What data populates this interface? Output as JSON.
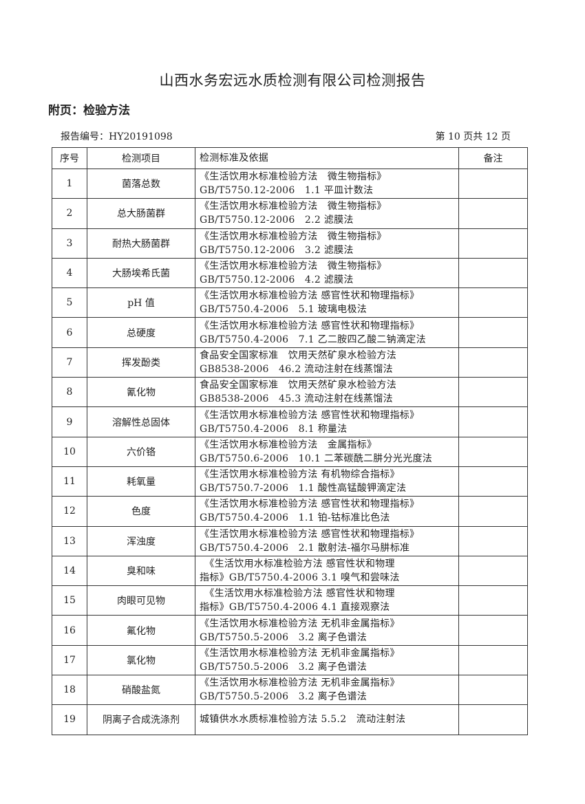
{
  "title": "山西水务宏远水质检测有限公司检测报告",
  "subtitle": "附页：检验方法",
  "report_no_label": "报告编号：HY20191098",
  "page_label": "第 10 页共 12 页",
  "table": {
    "headers": [
      "序号",
      "检测项目",
      "检测标准及依据",
      "备注"
    ],
    "rows": [
      {
        "no": "1",
        "item": "菌落总数",
        "line1": "《生活饮用水标准检验方法　微生物指标》",
        "line2": "GB/T5750.12-2006　1.1 平皿计数法",
        "note": ""
      },
      {
        "no": "2",
        "item": "总大肠菌群",
        "line1": "《生活饮用水标准检验方法　微生物指标》",
        "line2": "GB/T5750.12-2006　2.2 滤膜法",
        "note": ""
      },
      {
        "no": "3",
        "item": "耐热大肠菌群",
        "line1": "《生活饮用水标准检验方法　微生物指标》",
        "line2": "GB/T5750.12-2006　3.2 滤膜法",
        "note": ""
      },
      {
        "no": "4",
        "item": "大肠埃希氏菌",
        "line1": "《生活饮用水标准检验方法　微生物指标》",
        "line2": "GB/T5750.12-2006　4.2 滤膜法",
        "note": ""
      },
      {
        "no": "5",
        "item": "pH 值",
        "line1": "《生活饮用水标准检验方法 感官性状和物理指标》",
        "line2": "GB/T5750.4-2006　5.1 玻璃电极法",
        "note": ""
      },
      {
        "no": "6",
        "item": "总硬度",
        "line1": "《生活饮用水标准检验方法 感官性状和物理指标》",
        "line2": "GB/T5750.4-2006　7.1 乙二胺四乙酸二钠滴定法",
        "note": ""
      },
      {
        "no": "7",
        "item": "挥发酚类",
        "line1": "食品安全国家标准　饮用天然矿泉水检验方法",
        "line2": "GB8538-2006　46.2 流动注射在线蒸馏法",
        "note": ""
      },
      {
        "no": "8",
        "item": "氰化物",
        "line1": "食品安全国家标准　饮用天然矿泉水检验方法",
        "line2": "GB8538-2006　45.3 流动注射在线蒸馏法",
        "note": ""
      },
      {
        "no": "9",
        "item": "溶解性总固体",
        "line1": "《生活饮用水标准检验方法 感官性状和物理指标》",
        "line2": "GB/T5750.4-2006　8.1 称量法",
        "note": ""
      },
      {
        "no": "10",
        "item": "六价铬",
        "line1": "《生活饮用水标准检验方法　金属指标》",
        "line2": "GB/T5750.6-2006　10.1 二苯碳酰二肼分光光度法",
        "note": ""
      },
      {
        "no": "11",
        "item": "耗氧量",
        "line1": "《生活饮用水标准检验方法 有机物综合指标》",
        "line2": "GB/T5750.7-2006　1.1 酸性高锰酸钾滴定法",
        "note": ""
      },
      {
        "no": "12",
        "item": "色度",
        "line1": "《生活饮用水标准检验方法 感官性状和物理指标》",
        "line2": "GB/T5750.4-2006　1.1 铂-钴标准比色法",
        "note": ""
      },
      {
        "no": "13",
        "item": "浑浊度",
        "line1": "《生活饮用水标准检验方法 感官性状和物理指标》",
        "line2": "GB/T5750.4-2006　2.1 散射法-福尔马肼标准",
        "note": ""
      },
      {
        "no": "14",
        "item": "臭和味",
        "line1": "　《生活饮用水标准检验方法 感官性状和物理",
        "line2": "指标》GB/T5750.4-2006 3.1 嗅气和尝味法",
        "note": ""
      },
      {
        "no": "15",
        "item": "肉眼可见物",
        "line1": "　《生活饮用水标准检验方法 感官性状和物理",
        "line2": "指标》GB/T5750.4-2006 4.1 直接观察法",
        "note": ""
      },
      {
        "no": "16",
        "item": "氟化物",
        "line1": "《生活饮用水标准检验方法 无机非金属指标》",
        "line2": "GB/T5750.5-2006　3.2 离子色谱法",
        "note": ""
      },
      {
        "no": "17",
        "item": "氯化物",
        "line1": "《生活饮用水标准检验方法 无机非金属指标》",
        "line2": "GB/T5750.5-2006　3.2 离子色谱法",
        "note": ""
      },
      {
        "no": "18",
        "item": "硝酸盐氮",
        "line1": "《生活饮用水标准检验方法 无机非金属指标》",
        "line2": "GB/T5750.5-2006　3.2 离子色谱法",
        "note": ""
      },
      {
        "no": "19",
        "item": "阴离子合成洗涤剂",
        "line1": "城镇供水水质标准检验方法 5.5.2　流动注射法",
        "line2": "",
        "note": ""
      }
    ]
  }
}
